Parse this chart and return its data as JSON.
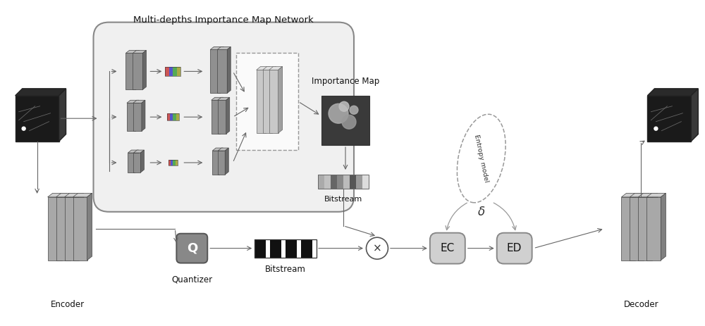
{
  "title": "Multi-depths Importance Map Network",
  "labels": {
    "encoder": "Encoder",
    "decoder": "Decoder",
    "quantizer": "Quantizer",
    "bitstream_bottom": "Bitstream",
    "bitstream_top": "Bitstream",
    "importance_map": "Importance Map",
    "entropy_model": "Entropy model",
    "delta": "δ",
    "ec": "EC",
    "ed": "ED",
    "q": "Q",
    "cross": "×"
  },
  "colors": {
    "white": "#ffffff",
    "light_gray": "#e8e8e8",
    "med_gray": "#aaaaaa",
    "dark_gray": "#777777",
    "darker_gray": "#555555",
    "slab_face": "#a8a8a8",
    "slab_top": "#d0d0d0",
    "slab_side": "#808080",
    "inner_slab_face": "#909090",
    "inner_slab_top": "#c0c0c0",
    "inner_slab_side": "#686868",
    "light_slab_face": "#c8c8c8",
    "light_slab_top": "#e0e0e0",
    "light_slab_side": "#a0a0a0",
    "net_bg": "#f0f0f0",
    "net_border": "#888888",
    "quant_bg": "#888888",
    "ec_ed_bg": "#d0d0d0",
    "ec_ed_border": "#888888",
    "arrow_color": "#666666",
    "image_dark": "#1a1a1a",
    "image_mid": "#3a3a3a",
    "image_top": "#2a2a2a",
    "dashed_border": "#999999"
  }
}
